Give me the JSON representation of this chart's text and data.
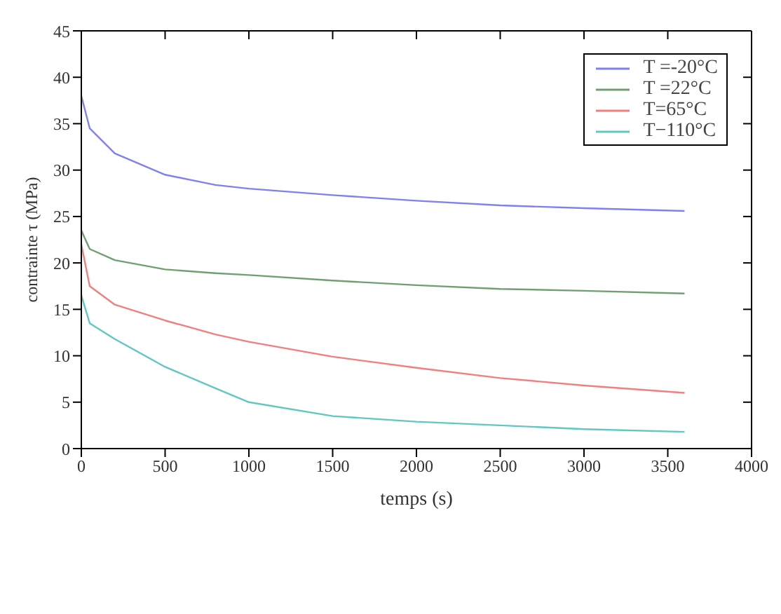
{
  "chart_data": {
    "type": "line",
    "xlabel": "temps (s)",
    "ylabel": "contrainte τ (MPa)",
    "xlim": [
      0,
      4000
    ],
    "xticks": [
      0,
      500,
      1000,
      1500,
      2000,
      2500,
      3000,
      3500,
      4000
    ],
    "ylim": [
      0,
      45
    ],
    "yticks": [
      0,
      5,
      10,
      15,
      20,
      25,
      30,
      35,
      40,
      45
    ],
    "grid": false,
    "legend": "top right",
    "marker": "none",
    "line_style": "solid",
    "x": [
      0,
      50,
      200,
      500,
      800,
      1000,
      1500,
      2000,
      2500,
      3000,
      3600
    ],
    "series": [
      {
        "name": "T =-20°C",
        "color": "#8080f0",
        "values": [
          38,
          34.5,
          31.8,
          29.5,
          28.4,
          28,
          27.3,
          26.7,
          26.2,
          25.9,
          25.6
        ]
      },
      {
        "name": "T =22°C",
        "color": "#70a070",
        "values": [
          23.5,
          21.5,
          20.3,
          19.3,
          18.9,
          18.7,
          18.1,
          17.6,
          17.2,
          17.0,
          16.7
        ]
      },
      {
        "name": "T=65°C",
        "color": "#f08080",
        "values": [
          22,
          17.5,
          15.5,
          13.8,
          12.3,
          11.5,
          9.9,
          8.7,
          7.6,
          6.8,
          6.0
        ]
      },
      {
        "name": "T−110°C",
        "color": "#60c8c0",
        "values": [
          16.5,
          13.5,
          11.8,
          8.8,
          6.5,
          5.0,
          3.5,
          2.9,
          2.5,
          2.1,
          1.8
        ]
      }
    ]
  }
}
